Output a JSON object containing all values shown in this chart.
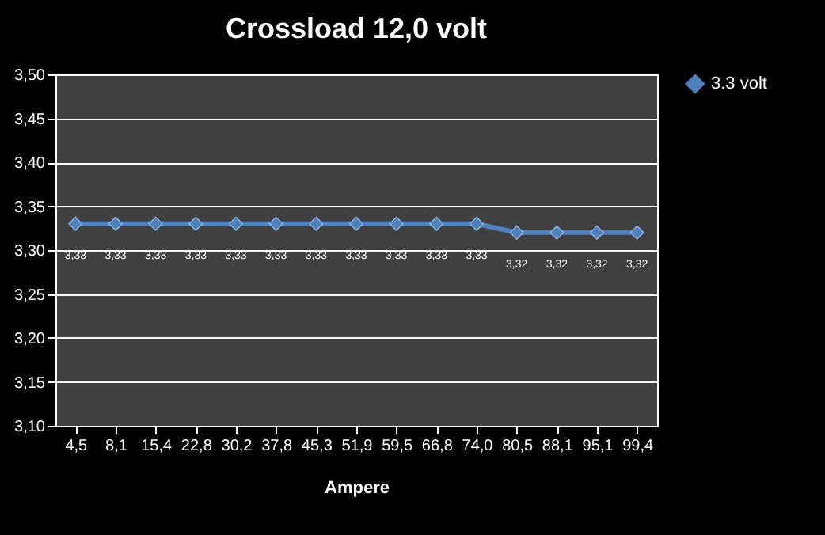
{
  "chart_data": {
    "type": "line",
    "title": "Crossload 12,0 volt",
    "xlabel": "Ampere",
    "categories": [
      "4,5",
      "8,1",
      "15,4",
      "22,8",
      "30,2",
      "37,8",
      "45,3",
      "51,9",
      "59,5",
      "66,8",
      "74,0",
      "80,5",
      "88,1",
      "95,1",
      "99,4"
    ],
    "series": [
      {
        "name": "3.3 volt",
        "color": "#4f81bd",
        "values": [
          3.33,
          3.33,
          3.33,
          3.33,
          3.33,
          3.33,
          3.33,
          3.33,
          3.33,
          3.33,
          3.33,
          3.32,
          3.32,
          3.32,
          3.32
        ],
        "value_labels": [
          "3,33",
          "3,33",
          "3,33",
          "3,33",
          "3,33",
          "3,33",
          "3,33",
          "3,33",
          "3,33",
          "3,33",
          "3,33",
          "3,32",
          "3,32",
          "3,32",
          "3,32"
        ]
      }
    ],
    "ylim": [
      3.1,
      3.5
    ],
    "yticks": [
      {
        "value": 3.1,
        "label": "3,10"
      },
      {
        "value": 3.15,
        "label": "3,15"
      },
      {
        "value": 3.2,
        "label": "3,20"
      },
      {
        "value": 3.25,
        "label": "3,25"
      },
      {
        "value": 3.3,
        "label": "3,30"
      },
      {
        "value": 3.35,
        "label": "3,35"
      },
      {
        "value": 3.4,
        "label": "3,40"
      },
      {
        "value": 3.45,
        "label": "3,45"
      },
      {
        "value": 3.5,
        "label": "3,50"
      }
    ],
    "grid": "y",
    "legend": "right",
    "marker": "diamond",
    "line_style": "solid"
  }
}
